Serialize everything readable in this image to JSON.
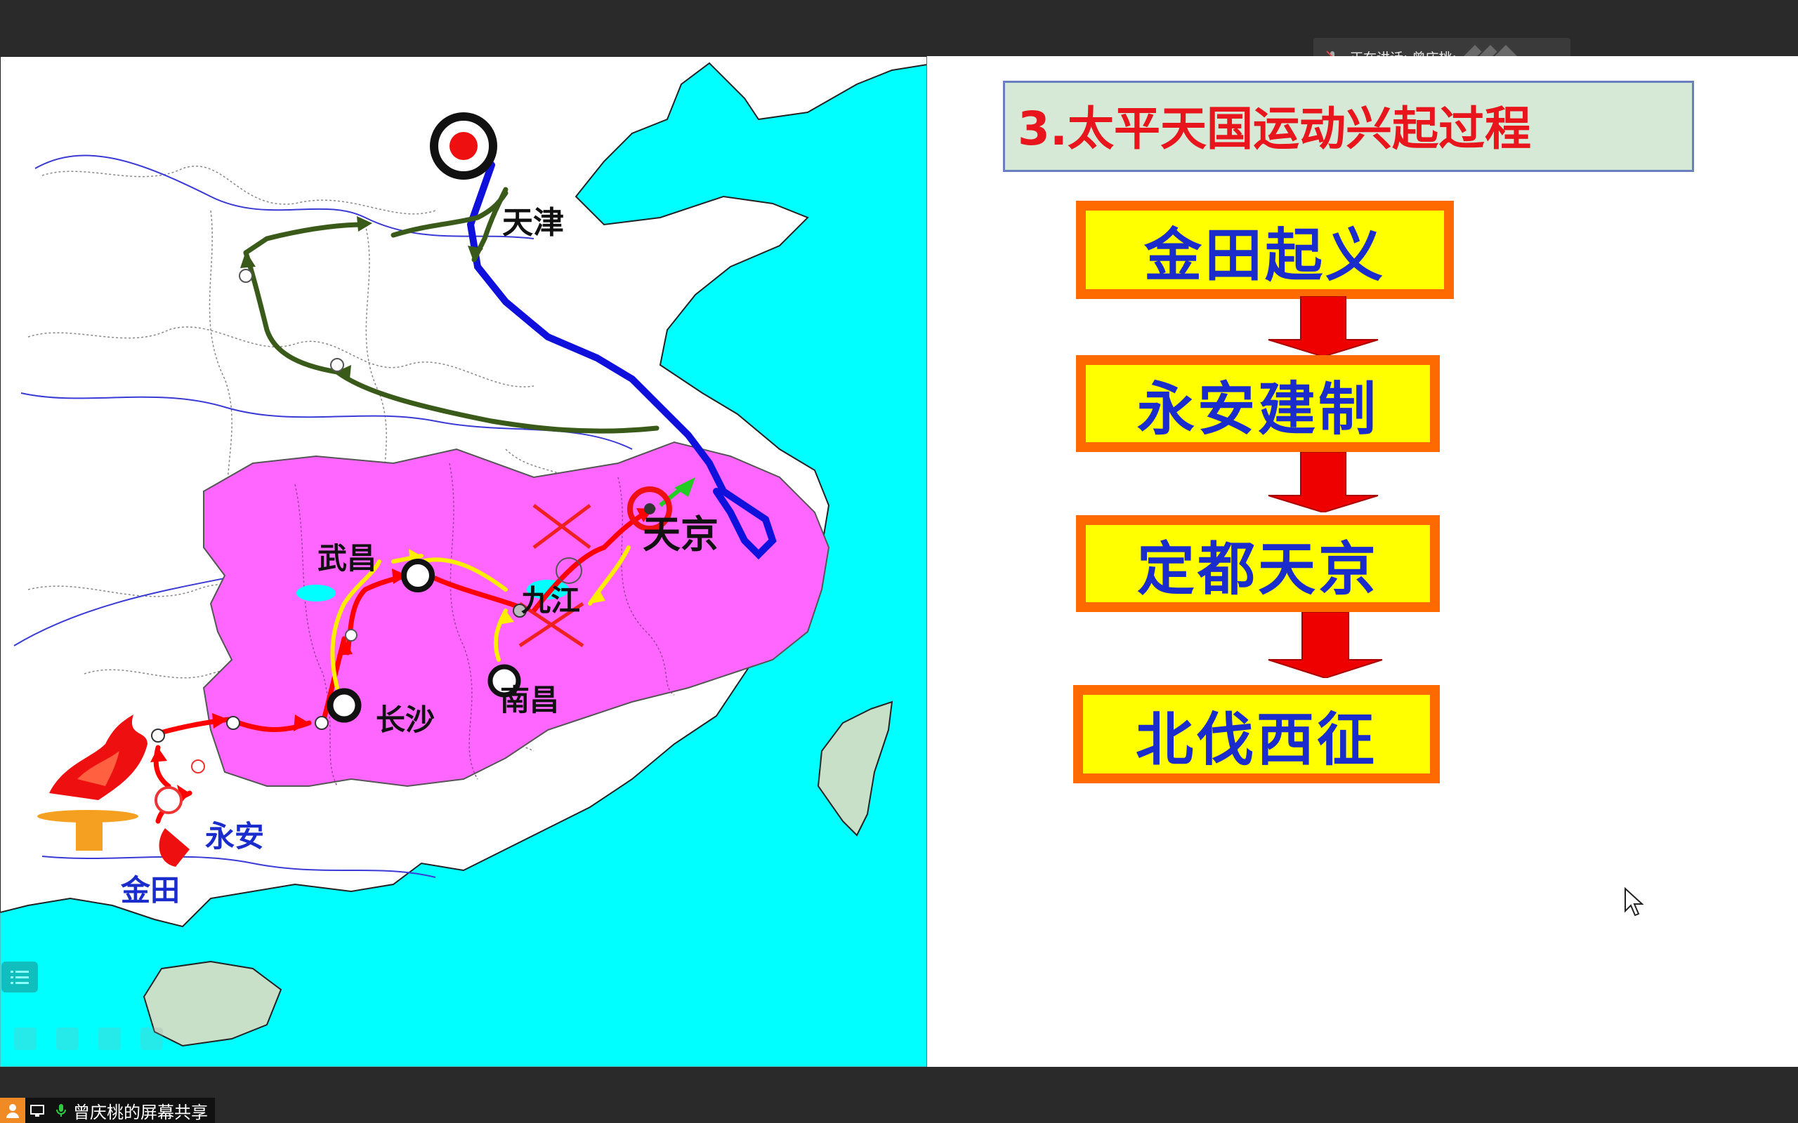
{
  "meeting": {
    "speaker_label": "正在讲话: 曾庆桃;",
    "share_label": "曾庆桃的屏幕共享"
  },
  "map": {
    "cities": {
      "tianjin": "天津",
      "tianjing": "天京",
      "wuchang": "武昌",
      "jiujiang": "九江",
      "nanchang": "南昌",
      "changsha": "长沙",
      "yongan": "永安",
      "jintian": "金田"
    }
  },
  "slide": {
    "title": "3.太平天国运动兴起过程",
    "steps": [
      "金田起义",
      "永安建制",
      "定都天京",
      "北伐西征"
    ]
  },
  "colors": {
    "sea": "#00ffff",
    "occupied_region": "#ff66ff",
    "title_red": "#e8161c",
    "step_fill": "#ffff00",
    "step_border": "#ff6a00",
    "step_text": "#1a2ccc",
    "arrow_red": "#ff0000",
    "route_green": "#3a5a1a",
    "route_blue": "#1010dd"
  }
}
